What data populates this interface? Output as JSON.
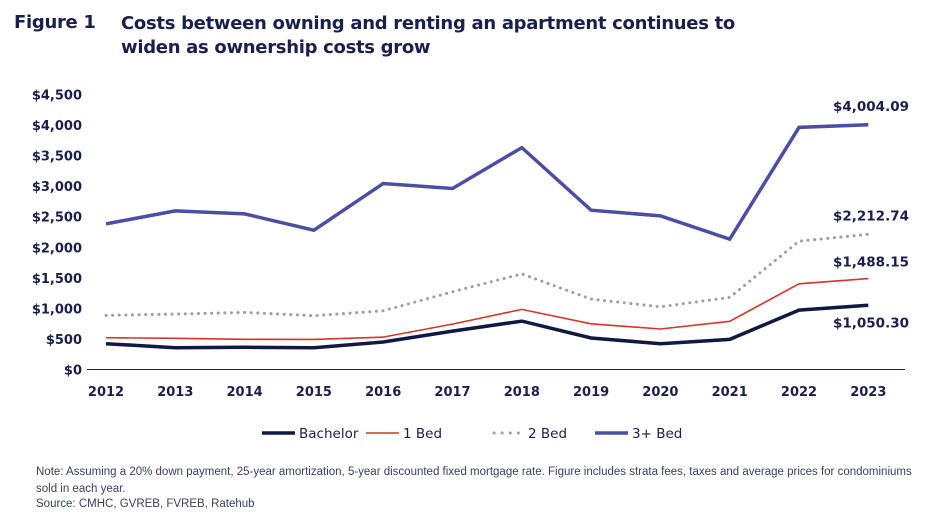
{
  "figure": {
    "label": "Figure 1",
    "title": "Costs between owning and renting an apartment continues to widen as ownership costs grow",
    "note": "Note: Assuming a 20% down payment, 25-year amortization, 5-year discounted fixed mortgage rate. Figure includes strata fees, taxes and average prices for condominiums sold in each year.",
    "source": "Source: CMHC, GVREB, FVREB, Ratehub"
  },
  "chart_data": {
    "type": "line",
    "title": "Costs between owning and renting an apartment continues to widen as ownership costs grow",
    "xlabel": "",
    "ylabel": "",
    "x": [
      "2012",
      "2013",
      "2014",
      "2015",
      "2016",
      "2017",
      "2018",
      "2019",
      "2020",
      "2021",
      "2022",
      "2023"
    ],
    "ylim": [
      0,
      4500
    ],
    "yticks": [
      0,
      500,
      1000,
      1500,
      2000,
      2500,
      3000,
      3500,
      4000,
      4500
    ],
    "ytick_labels": [
      "$0",
      "$500",
      "$1,000",
      "$1,500",
      "$2,000",
      "$2,500",
      "$3,000",
      "$3,500",
      "$4,000",
      "$4,500"
    ],
    "grid": false,
    "legend_position": "bottom-center",
    "series": [
      {
        "name": "Bachelor",
        "color": "#0f1941",
        "style": "solid-thick",
        "values": [
          422,
          357,
          363,
          357,
          450,
          629,
          792,
          515,
          422,
          493,
          972,
          1050.3
        ],
        "end_label": "$1,050.30"
      },
      {
        "name": "1 Bed",
        "color": "#d9342b",
        "style": "solid-thin",
        "values": [
          520,
          510,
          495,
          493,
          530,
          743,
          984,
          748,
          662,
          788,
          1402,
          1488.15
        ],
        "end_label": "$1,488.15"
      },
      {
        "name": "2 Bed",
        "color": "#9a9cb3",
        "style": "dotted",
        "values": [
          885,
          907,
          934,
          880,
          961,
          1271,
          1565,
          1152,
          1026,
          1180,
          2100,
          2212.74
        ],
        "end_label": "$2,212.74"
      },
      {
        "name": "3+ Bed",
        "color": "#4b4ea3",
        "style": "solid-thick",
        "values": [
          2382,
          2595,
          2546,
          2279,
          3043,
          2961,
          3631,
          2606,
          2513,
          2132,
          3962,
          4004.09
        ],
        "end_label": "$4,004.09"
      }
    ]
  }
}
